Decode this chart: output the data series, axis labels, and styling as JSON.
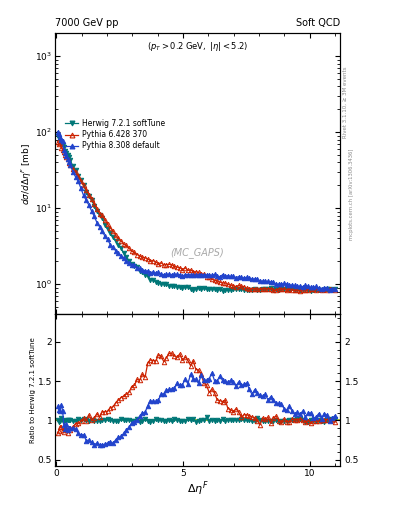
{
  "title_left": "7000 GeV pp",
  "title_right": "Soft QCD",
  "annotation": "(p_{T} > 0.2 GeV, |\\eta| < 5.2)",
  "watermark": "(MC_GAPS)",
  "ylabel_main": "d\\sigma/d\\Delta\\eta^{F} [mb]",
  "ylabel_ratio": "Ratio to Herwig 7.2.1 softTune",
  "xlabel": "\\Delta\\eta^{F}",
  "ylim_main": [
    0.4,
    2000
  ],
  "ylim_ratio": [
    0.42,
    2.35
  ],
  "xlim": [
    -0.05,
    11.2
  ],
  "legend": [
    {
      "label": "Herwig 7.2.1 softTune",
      "color": "#007777",
      "marker": "v",
      "filled": true
    },
    {
      "label": "Pythia 6.428 370",
      "color": "#cc2200",
      "marker": "^",
      "filled": false
    },
    {
      "label": "Pythia 8.308 default",
      "color": "#2244cc",
      "marker": "^",
      "filled": true
    }
  ],
  "green_line": "#99bb00",
  "background_color": "#ffffff"
}
